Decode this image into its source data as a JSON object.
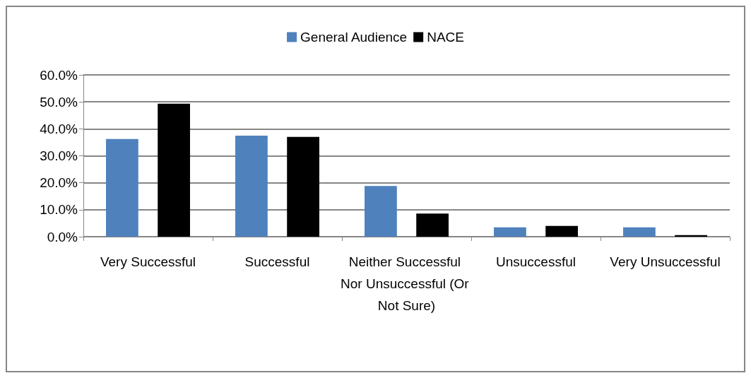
{
  "chart_data": {
    "type": "bar",
    "categories": [
      "Very Successful",
      "Successful",
      "Neither Successful Nor Unsuccessful (Or Not Sure)",
      "Unsuccessful",
      "Very Unsuccessful"
    ],
    "series": [
      {
        "name": "General Audience",
        "color": "#4f81bd",
        "values": [
          36.2,
          37.5,
          18.8,
          3.5,
          3.5
        ]
      },
      {
        "name": "NACE",
        "color": "#000000",
        "values": [
          49.3,
          37.0,
          8.6,
          4.0,
          0.6
        ]
      }
    ],
    "ylim": [
      0,
      60
    ],
    "yticks": [
      {
        "value": 0,
        "label": "0.0%"
      },
      {
        "value": 10,
        "label": "10.0%"
      },
      {
        "value": 20,
        "label": "20.0%"
      },
      {
        "value": 30,
        "label": "30.0%"
      },
      {
        "value": 40,
        "label": "40.0%"
      },
      {
        "value": 50,
        "label": "50.0%"
      },
      {
        "value": 60,
        "label": "60.0%"
      }
    ],
    "grid": "y",
    "legend": "top"
  }
}
